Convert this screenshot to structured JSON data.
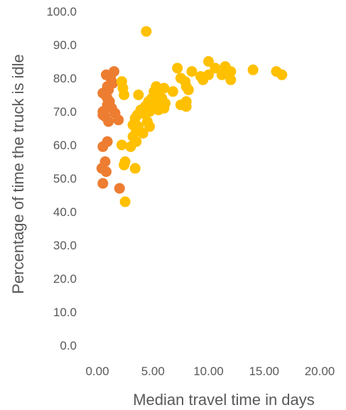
{
  "chart_data": {
    "type": "scatter",
    "xlabel": "Median travel time in days",
    "ylabel": "Percentage of time the truck is idle",
    "xlim": [
      0,
      20
    ],
    "ylim": [
      0,
      100
    ],
    "x_ticks": [
      "0.00",
      "5.00",
      "10.00",
      "15.00",
      "20.00"
    ],
    "y_ticks": [
      "0.0",
      "10.0",
      "20.0",
      "30.0",
      "40.0",
      "50.0",
      "60.0",
      "70.0",
      "80.0",
      "90.0",
      "100.0"
    ],
    "grid": false,
    "legend": "none",
    "series": [
      {
        "color": "#ED7D31",
        "points": [
          [
            0.8,
            81.0
          ],
          [
            1.5,
            82.0
          ],
          [
            1.2,
            80.0
          ],
          [
            1.4,
            78.5
          ],
          [
            0.9,
            77.5
          ],
          [
            0.5,
            75.5
          ],
          [
            1.0,
            76.5
          ],
          [
            0.7,
            75.0
          ],
          [
            0.9,
            74.0
          ],
          [
            1.1,
            73.0
          ],
          [
            0.9,
            72.0
          ],
          [
            1.3,
            71.0
          ],
          [
            0.5,
            70.0
          ],
          [
            1.6,
            69.5
          ],
          [
            0.5,
            69.0
          ],
          [
            0.7,
            68.5
          ],
          [
            1.9,
            67.5
          ],
          [
            1.0,
            67.0
          ],
          [
            0.9,
            61.0
          ],
          [
            0.5,
            59.5
          ],
          [
            0.7,
            55.0
          ],
          [
            0.4,
            53.0
          ],
          [
            0.8,
            52.0
          ],
          [
            0.5,
            48.5
          ],
          [
            2.0,
            47.0
          ]
        ]
      },
      {
        "color": "#FFC000",
        "points": [
          [
            4.4,
            94.0
          ],
          [
            10.0,
            85.0
          ],
          [
            7.2,
            83.0
          ],
          [
            10.6,
            83.0
          ],
          [
            11.5,
            83.5
          ],
          [
            14.0,
            82.5
          ],
          [
            16.1,
            82.0
          ],
          [
            16.6,
            81.0
          ],
          [
            8.5,
            82.0
          ],
          [
            12.0,
            82.0
          ],
          [
            9.3,
            80.5
          ],
          [
            10.0,
            81.0
          ],
          [
            11.2,
            81.0
          ],
          [
            7.5,
            80.0
          ],
          [
            2.2,
            79.0
          ],
          [
            9.5,
            79.5
          ],
          [
            7.9,
            79.0
          ],
          [
            12.0,
            79.5
          ],
          [
            5.3,
            77.5
          ],
          [
            6.0,
            77.0
          ],
          [
            8.0,
            77.5
          ],
          [
            2.3,
            77.0
          ],
          [
            5.1,
            76.0
          ],
          [
            6.8,
            76.0
          ],
          [
            8.2,
            76.5
          ],
          [
            2.4,
            75.0
          ],
          [
            3.7,
            75.0
          ],
          [
            5.5,
            75.5
          ],
          [
            4.9,
            74.0
          ],
          [
            5.8,
            74.0
          ],
          [
            4.6,
            73.0
          ],
          [
            6.1,
            72.5
          ],
          [
            7.5,
            72.0
          ],
          [
            8.0,
            73.0
          ],
          [
            4.3,
            71.5
          ],
          [
            5.2,
            72.0
          ],
          [
            8.0,
            71.5
          ],
          [
            6.0,
            71.0
          ],
          [
            3.9,
            70.5
          ],
          [
            4.7,
            70.0
          ],
          [
            5.5,
            70.5
          ],
          [
            3.6,
            69.0
          ],
          [
            4.1,
            69.5
          ],
          [
            3.4,
            68.0
          ],
          [
            4.5,
            67.0
          ],
          [
            3.2,
            66.0
          ],
          [
            3.7,
            65.5
          ],
          [
            4.7,
            65.5
          ],
          [
            3.5,
            64.5
          ],
          [
            4.1,
            63.5
          ],
          [
            3.2,
            62.5
          ],
          [
            3.5,
            61.0
          ],
          [
            2.2,
            60.0
          ],
          [
            3.0,
            59.5
          ],
          [
            2.5,
            55.0
          ],
          [
            2.4,
            54.0
          ],
          [
            3.4,
            53.0
          ],
          [
            2.5,
            43.0
          ]
        ]
      }
    ]
  }
}
